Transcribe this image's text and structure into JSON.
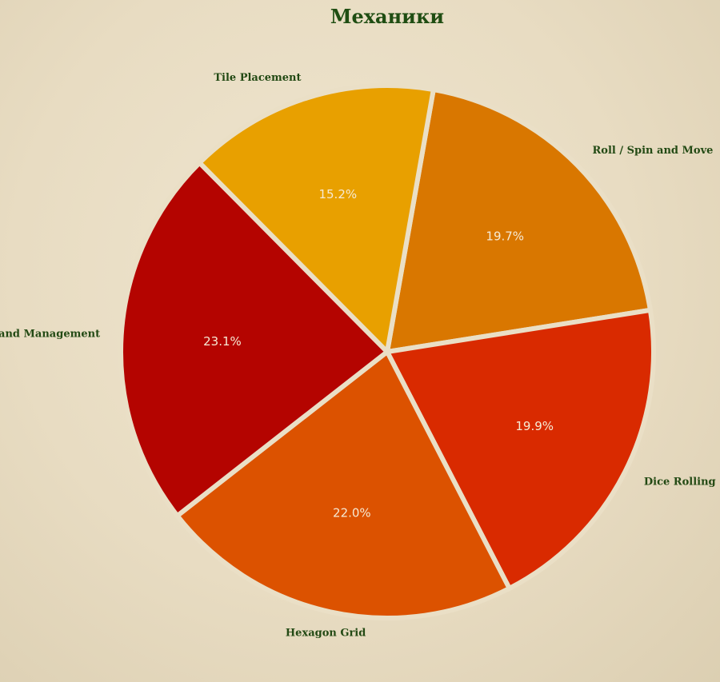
{
  "chart_data": {
    "type": "pie",
    "title": "Механики",
    "slices": [
      {
        "label": "Roll / Spin and Move",
        "value": 19.7,
        "pct_label": "19.7%",
        "color": "#d97700"
      },
      {
        "label": "Dice Rolling",
        "value": 19.9,
        "pct_label": "19.9%",
        "color": "#d92a00"
      },
      {
        "label": "Hexagon Grid",
        "value": 22.0,
        "pct_label": "22.0%",
        "color": "#dc5200"
      },
      {
        "label": "Hand Management",
        "value": 23.1,
        "pct_label": "23.1%",
        "color": "#b40400"
      },
      {
        "label": "Tile Placement",
        "value": 15.2,
        "pct_label": "15.2%",
        "color": "#e8a000"
      }
    ],
    "legend": "none"
  }
}
